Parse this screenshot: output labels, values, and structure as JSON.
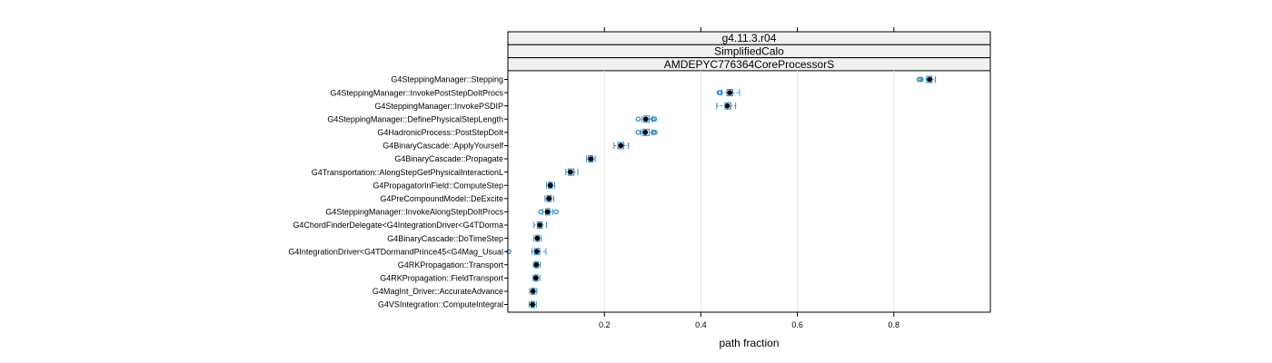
{
  "chart_data": {
    "type": "box",
    "strips": [
      "g4.11.3.r04",
      "SimplifiedCalo",
      "AMDEPYC776364CoreProcessorS"
    ],
    "xlabel": "path fraction",
    "xlim": [
      0.0,
      1.0
    ],
    "xticks": [
      0.2,
      0.4,
      0.6,
      0.8
    ],
    "grid": "vertical",
    "colors": {
      "box": "#2e88c0",
      "median": "#000000",
      "grid": "#e6e6e6",
      "strip": "#f0f0f0"
    },
    "categories": [
      "G4SteppingManager::Stepping",
      "G4SteppingManager::InvokePostStepDoItProcs",
      "G4SteppingManager::InvokePSDIP",
      "G4SteppingManager::DefinePhysicalStepLength",
      "G4HadronicProcess::PostStepDoIt",
      "G4BinaryCascade::ApplyYourself",
      "G4BinaryCascade::Propagate",
      "G4Transportation::AlongStepGetPhysicalInteractionL",
      "G4PropagatorInField::ComputeStep",
      "G4PreCompoundModel::DeExcite",
      "G4SteppingManager::InvokeAlongStepDoItProcs",
      "G4ChordFinderDelegate<G4IntegrationDriver<G4TDorma",
      "G4BinaryCascade::DoTimeStep",
      "G4IntegrationDriver<G4TDormandPrince45<G4Mag_Usual",
      "G4RKPropagation::Transport",
      "G4RKPropagation::FieldTransport",
      "G4MagInt_Driver::AccurateAdvance",
      "G4VSIntegration::ComputeIntegral"
    ],
    "boxes": [
      {
        "whisker_low": 0.858,
        "q1": 0.868,
        "median": 0.874,
        "q3": 0.879,
        "whisker_high": 0.886,
        "outliers": [
          0.852,
          0.856
        ]
      },
      {
        "whisker_low": 0.443,
        "q1": 0.454,
        "median": 0.46,
        "q3": 0.466,
        "whisker_high": 0.48,
        "outliers": [
          0.438,
          0.44
        ]
      },
      {
        "whisker_low": 0.433,
        "q1": 0.45,
        "median": 0.455,
        "q3": 0.462,
        "whisker_high": 0.472,
        "outliers": []
      },
      {
        "whisker_low": 0.278,
        "q1": 0.282,
        "median": 0.286,
        "q3": 0.293,
        "whisker_high": 0.3,
        "outliers": [
          0.27,
          0.301,
          0.304
        ]
      },
      {
        "whisker_low": 0.276,
        "q1": 0.28,
        "median": 0.285,
        "q3": 0.293,
        "whisker_high": 0.299,
        "outliers": [
          0.27,
          0.302,
          0.305
        ]
      },
      {
        "whisker_low": 0.22,
        "q1": 0.228,
        "median": 0.234,
        "q3": 0.24,
        "whisker_high": 0.25,
        "outliers": []
      },
      {
        "whisker_low": 0.163,
        "q1": 0.167,
        "median": 0.172,
        "q3": 0.176,
        "whisker_high": 0.181,
        "outliers": []
      },
      {
        "whisker_low": 0.12,
        "q1": 0.125,
        "median": 0.13,
        "q3": 0.137,
        "whisker_high": 0.145,
        "outliers": []
      },
      {
        "whisker_low": 0.08,
        "q1": 0.084,
        "median": 0.088,
        "q3": 0.092,
        "whisker_high": 0.097,
        "outliers": []
      },
      {
        "whisker_low": 0.077,
        "q1": 0.081,
        "median": 0.085,
        "q3": 0.09,
        "whisker_high": 0.095,
        "outliers": []
      },
      {
        "whisker_low": 0.072,
        "q1": 0.078,
        "median": 0.082,
        "q3": 0.087,
        "whisker_high": 0.093,
        "outliers": [
          0.068,
          0.1
        ]
      },
      {
        "whisker_low": 0.054,
        "q1": 0.061,
        "median": 0.066,
        "q3": 0.071,
        "whisker_high": 0.08,
        "outliers": []
      },
      {
        "whisker_low": 0.054,
        "q1": 0.058,
        "median": 0.061,
        "q3": 0.065,
        "whisker_high": 0.069,
        "outliers": []
      },
      {
        "whisker_low": 0.05,
        "q1": 0.055,
        "median": 0.06,
        "q3": 0.066,
        "whisker_high": 0.079,
        "outliers": [
          0.002
        ]
      },
      {
        "whisker_low": 0.053,
        "q1": 0.056,
        "median": 0.059,
        "q3": 0.063,
        "whisker_high": 0.067,
        "outliers": []
      },
      {
        "whisker_low": 0.052,
        "q1": 0.055,
        "median": 0.058,
        "q3": 0.062,
        "whisker_high": 0.066,
        "outliers": []
      },
      {
        "whisker_low": 0.045,
        "q1": 0.049,
        "median": 0.052,
        "q3": 0.056,
        "whisker_high": 0.06,
        "outliers": []
      },
      {
        "whisker_low": 0.044,
        "q1": 0.048,
        "median": 0.051,
        "q3": 0.055,
        "whisker_high": 0.059,
        "outliers": []
      }
    ]
  }
}
